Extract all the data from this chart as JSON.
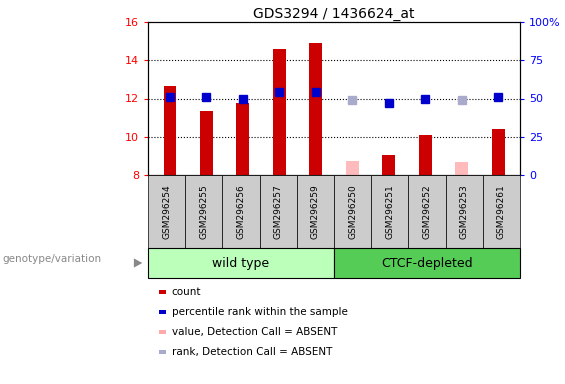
{
  "title": "GDS3294 / 1436624_at",
  "samples": [
    "GSM296254",
    "GSM296255",
    "GSM296256",
    "GSM296257",
    "GSM296259",
    "GSM296250",
    "GSM296251",
    "GSM296252",
    "GSM296253",
    "GSM296261"
  ],
  "count_values": [
    12.65,
    11.35,
    11.75,
    14.6,
    14.9,
    null,
    9.05,
    10.1,
    null,
    10.4
  ],
  "count_absent": [
    null,
    null,
    null,
    null,
    null,
    8.75,
    null,
    null,
    8.7,
    null
  ],
  "rank_values": [
    12.1,
    12.1,
    12.0,
    12.35,
    12.35,
    null,
    11.75,
    12.0,
    null,
    12.1
  ],
  "rank_absent": [
    null,
    null,
    null,
    null,
    null,
    11.9,
    null,
    null,
    11.9,
    null
  ],
  "ylim_left": [
    8,
    16
  ],
  "ylim_right": [
    0,
    100
  ],
  "yticks_left": [
    8,
    10,
    12,
    14,
    16
  ],
  "yticks_right": [
    0,
    25,
    50,
    75,
    100
  ],
  "ytick_labels_right": [
    "0",
    "25",
    "50",
    "75",
    "100%"
  ],
  "group1_label": "wild type",
  "group2_label": "CTCF-depleted",
  "group_label": "genotype/variation",
  "legend_labels": [
    "count",
    "percentile rank within the sample",
    "value, Detection Call = ABSENT",
    "rank, Detection Call = ABSENT"
  ],
  "legend_colors": [
    "#cc0000",
    "#0000cc",
    "#ffaaaa",
    "#aaaacc"
  ],
  "bar_color_present": "#cc0000",
  "bar_color_absent": "#ffbbbb",
  "rank_color_present": "#0000cc",
  "rank_color_absent": "#aaaacc",
  "group1_bg": "#bbffbb",
  "group2_bg": "#55cc55",
  "sample_bg": "#cccccc",
  "bar_width": 0.35,
  "rank_marker_size": 6,
  "n_wt": 5,
  "n_ctcf": 5
}
